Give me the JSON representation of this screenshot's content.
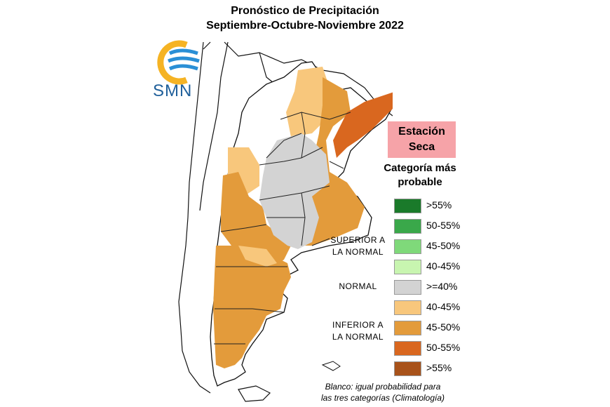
{
  "title": {
    "line1": "Pronóstico de Precipitación",
    "line2": "Septiembre-Octubre-Noviembre 2022"
  },
  "logo": {
    "text": "SMN",
    "icon": "smn-sun-wave-logo"
  },
  "season_badge": {
    "line1": "Estación",
    "line2": "Seca"
  },
  "category_heading": {
    "line1": "Categoría más",
    "line2": "probable"
  },
  "legend": [
    {
      "label": ">55%",
      "color": "#1a7a2a"
    },
    {
      "label": "50-55%",
      "color": "#3aa84a"
    },
    {
      "label": "45-50%",
      "color": "#7fd97a"
    },
    {
      "label": "40-45%",
      "color": "#c8f5b0"
    },
    {
      "label": ">=40%",
      "color": "#d3d3d3"
    },
    {
      "label": "40-45%",
      "color": "#f8c77c"
    },
    {
      "label": "45-50%",
      "color": "#e39b3b"
    },
    {
      "label": "50-55%",
      "color": "#d9671f"
    },
    {
      "label": ">55%",
      "color": "#a8521a"
    }
  ],
  "groups": {
    "superior": {
      "line1": "SUPERIOR A",
      "line2": "LA NORMAL"
    },
    "normal": "NORMAL",
    "inferior": {
      "line1": "INFERIOR A",
      "line2": "LA NORMAL"
    }
  },
  "note": {
    "line1": "Blanco: igual probabilidad para",
    "line2": "las tres categorías (Climatología)"
  }
}
